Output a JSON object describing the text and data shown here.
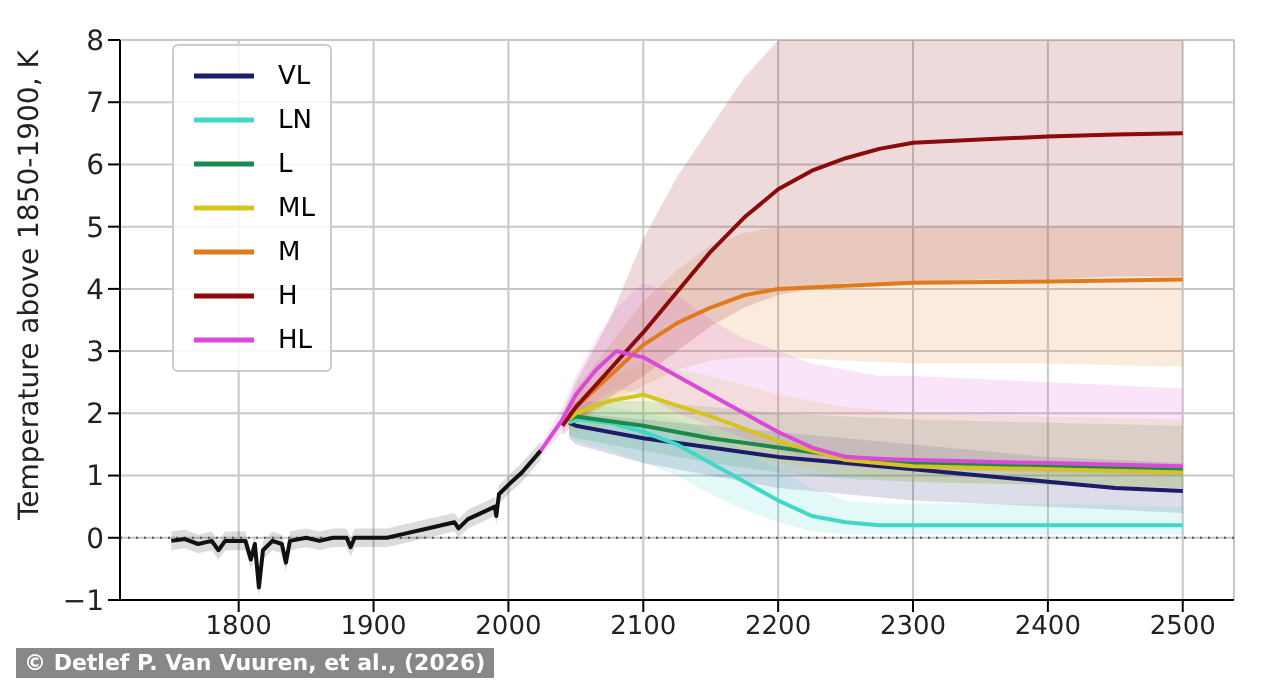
{
  "chart_data": {
    "type": "line",
    "ylabel": "Temperature above 1850-1900, K",
    "xlim": [
      1712,
      2538
    ],
    "xticks": [
      1800,
      1900,
      2000,
      2100,
      2200,
      2300,
      2400,
      2500
    ],
    "ylim": [
      -1,
      8
    ],
    "yticks": [
      -1,
      0,
      1,
      2,
      3,
      4,
      5,
      6,
      7,
      8
    ],
    "grid": true,
    "legend": "top left",
    "line_style": "solid",
    "marker": "none",
    "ref_lines": [
      {
        "axis": "y",
        "value": 0,
        "color": "#555555",
        "line_style": "dotted"
      }
    ],
    "annotations": [
      "© Detlef P. Van Vuuren, et al., (2026)"
    ],
    "series": [
      {
        "color": "#111111",
        "x": [
          1750,
          1760,
          1770,
          1780,
          1785,
          1790,
          1800,
          1805,
          1809,
          1812,
          1815,
          1818,
          1825,
          1832,
          1835,
          1838,
          1850,
          1860,
          1870,
          1880,
          1883,
          1886,
          1900,
          1910,
          1920,
          1940,
          1960,
          1963,
          1970,
          1980,
          1990,
          1991,
          1993,
          2000,
          2010,
          2020,
          2024
        ],
        "values": [
          -0.05,
          -0.02,
          -0.1,
          -0.05,
          -0.2,
          -0.05,
          -0.05,
          -0.05,
          -0.35,
          -0.1,
          -0.8,
          -0.2,
          -0.05,
          -0.1,
          -0.4,
          -0.05,
          0,
          -0.05,
          0,
          0,
          -0.15,
          0,
          0,
          0,
          0.05,
          0.15,
          0.25,
          0.15,
          0.3,
          0.4,
          0.5,
          0.35,
          0.7,
          0.85,
          1.05,
          1.3,
          1.4
        ],
        "lower": [
          -0.2,
          -0.17,
          -0.25,
          -0.2,
          -0.35,
          -0.2,
          -0.2,
          -0.2,
          -0.5,
          -0.25,
          -0.95,
          -0.35,
          -0.2,
          -0.25,
          -0.55,
          -0.2,
          -0.15,
          -0.2,
          -0.15,
          -0.15,
          -0.3,
          -0.15,
          -0.15,
          -0.15,
          -0.1,
          0,
          0.1,
          0,
          0.15,
          0.25,
          0.35,
          0.2,
          0.55,
          0.7,
          0.9,
          1.15,
          1.25
        ],
        "upper": [
          0.1,
          0.13,
          0.05,
          0.1,
          -0.05,
          0.1,
          0.1,
          0.1,
          -0.2,
          0.05,
          -0.65,
          -0.05,
          0.1,
          0.05,
          -0.25,
          0.1,
          0.15,
          0.1,
          0.15,
          0.15,
          0,
          0.15,
          0.15,
          0.15,
          0.2,
          0.3,
          0.4,
          0.3,
          0.45,
          0.55,
          0.65,
          0.5,
          0.85,
          1,
          1.2,
          1.45,
          1.55
        ]
      },
      {
        "name": "VL",
        "color": "#1c1c6b",
        "x": [
          2045,
          2050,
          2100,
          2150,
          2200,
          2250,
          2300,
          2350,
          2400,
          2450,
          2500
        ],
        "values": [
          1.85,
          1.8,
          1.6,
          1.45,
          1.3,
          1.2,
          1.1,
          1.0,
          0.9,
          0.8,
          0.75
        ],
        "lower": [
          1.6,
          1.5,
          1.2,
          1.0,
          0.8,
          0.7,
          0.6,
          0.55,
          0.5,
          0.45,
          0.4
        ],
        "upper": [
          2.0,
          2.0,
          1.9,
          1.8,
          1.7,
          1.6,
          1.5,
          1.4,
          1.3,
          1.25,
          1.2
        ]
      },
      {
        "name": "LN",
        "color": "#40d8c8",
        "x": [
          2045,
          2050,
          2075,
          2100,
          2125,
          2150,
          2175,
          2200,
          2225,
          2250,
          2275,
          2300,
          2400,
          2500
        ],
        "values": [
          1.85,
          1.9,
          1.85,
          1.7,
          1.5,
          1.2,
          0.9,
          0.6,
          0.35,
          0.25,
          0.2,
          0.2,
          0.2,
          0.2
        ],
        "lower": [
          1.6,
          1.55,
          1.4,
          1.2,
          1.0,
          0.7,
          0.45,
          0.25,
          0.1,
          0.05,
          0.05,
          0.05,
          0.05,
          0.05
        ],
        "upper": [
          2.0,
          2.1,
          2.1,
          2.0,
          1.9,
          1.7,
          1.4,
          1.1,
          0.8,
          0.6,
          0.55,
          0.55,
          0.55,
          0.5
        ]
      },
      {
        "name": "L",
        "color": "#1a8a4a",
        "x": [
          2045,
          2050,
          2100,
          2150,
          2200,
          2250,
          2300,
          2400,
          2500
        ],
        "values": [
          1.9,
          1.95,
          1.8,
          1.6,
          1.45,
          1.3,
          1.2,
          1.15,
          1.1
        ],
        "lower": [
          1.65,
          1.6,
          1.4,
          1.2,
          1.05,
          0.95,
          0.9,
          0.85,
          0.8
        ],
        "upper": [
          2.1,
          2.2,
          2.2,
          2.1,
          2.0,
          1.95,
          1.9,
          1.85,
          1.8
        ]
      },
      {
        "name": "ML",
        "color": "#d6c41e",
        "x": [
          2045,
          2050,
          2075,
          2100,
          2150,
          2200,
          2250,
          2300,
          2400,
          2500
        ],
        "values": [
          1.9,
          2.0,
          2.2,
          2.3,
          1.95,
          1.55,
          1.25,
          1.15,
          1.1,
          1.05
        ],
        "lower": [
          1.7,
          1.7,
          1.8,
          1.8,
          1.5,
          1.2,
          1.0,
          0.9,
          0.85,
          0.8
        ],
        "upper": [
          2.1,
          2.3,
          2.6,
          2.8,
          2.6,
          2.3,
          2.1,
          2.0,
          1.95,
          1.9
        ]
      },
      {
        "name": "M",
        "color": "#e07a1c",
        "x": [
          2045,
          2050,
          2075,
          2100,
          2125,
          2150,
          2175,
          2200,
          2250,
          2300,
          2400,
          2500
        ],
        "values": [
          1.95,
          2.1,
          2.6,
          3.1,
          3.45,
          3.7,
          3.9,
          4.0,
          4.05,
          4.1,
          4.12,
          4.15
        ],
        "lower": [
          1.8,
          1.85,
          2.15,
          2.45,
          2.7,
          2.85,
          2.9,
          2.9,
          2.85,
          2.8,
          2.8,
          2.75
        ],
        "upper": [
          2.1,
          2.4,
          3.1,
          3.8,
          4.3,
          4.7,
          4.9,
          5.0,
          5.0,
          5.0,
          5.0,
          5.0
        ]
      },
      {
        "name": "H",
        "color": "#8b0a0a",
        "x": [
          2040,
          2050,
          2075,
          2100,
          2125,
          2150,
          2175,
          2200,
          2225,
          2250,
          2275,
          2300,
          2350,
          2400,
          2450,
          2500
        ],
        "values": [
          1.8,
          2.1,
          2.7,
          3.3,
          3.95,
          4.6,
          5.15,
          5.6,
          5.9,
          6.1,
          6.25,
          6.35,
          6.4,
          6.45,
          6.48,
          6.5
        ],
        "lower": [
          1.65,
          1.85,
          2.25,
          2.6,
          3.0,
          3.4,
          3.7,
          3.9,
          4.0,
          4.1,
          4.1,
          4.1,
          4.15,
          4.15,
          4.2,
          4.2
        ],
        "upper": [
          2.0,
          2.5,
          3.5,
          4.8,
          5.8,
          6.6,
          7.4,
          8.0,
          8.0,
          8.0,
          8.0,
          8.0,
          8.0,
          8.0,
          8.0,
          8.0
        ]
      },
      {
        "name": "HL",
        "color": "#d94ad9",
        "x": [
          2024,
          2040,
          2050,
          2065,
          2080,
          2100,
          2125,
          2150,
          2175,
          2200,
          2225,
          2250,
          2275,
          2300,
          2400,
          2500
        ],
        "values": [
          1.4,
          1.9,
          2.3,
          2.7,
          3.0,
          2.9,
          2.6,
          2.3,
          2.0,
          1.7,
          1.45,
          1.3,
          1.27,
          1.25,
          1.2,
          1.15
        ],
        "lower": [
          1.3,
          1.7,
          1.95,
          2.2,
          2.4,
          2.3,
          2.0,
          1.8,
          1.6,
          1.4,
          1.25,
          1.15,
          1.1,
          1.1,
          1.05,
          1.0
        ],
        "upper": [
          1.5,
          2.1,
          2.6,
          3.2,
          3.7,
          4.1,
          3.9,
          3.5,
          3.2,
          3.0,
          2.8,
          2.7,
          2.6,
          2.6,
          2.5,
          2.4
        ]
      }
    ]
  }
}
